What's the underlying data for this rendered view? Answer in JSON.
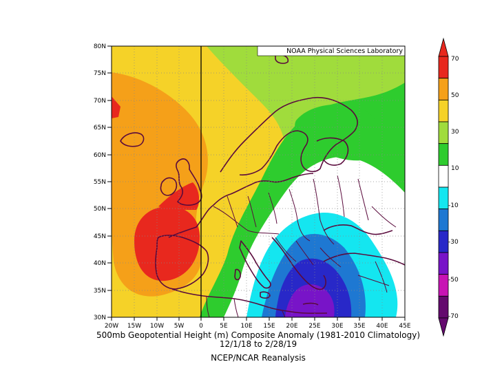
{
  "map": {
    "source_label": "NOAA Physical Sciences Laboratory",
    "lat_labels": [
      "30N",
      "35N",
      "40N",
      "45N",
      "50N",
      "55N",
      "60N",
      "65N",
      "70N",
      "75N",
      "80N"
    ],
    "lon_labels": [
      "20W",
      "15W",
      "10W",
      "5W",
      "0",
      "5E",
      "10E",
      "15E",
      "20E",
      "25E",
      "30E",
      "35E",
      "40E",
      "45E"
    ],
    "caption_line1": "500mb Geopotential Height (m) Composite Anomaly (1981-2010 Climatology)",
    "caption_line2": "12/1/18  to 2/28/19",
    "caption_line3": "NCEP/NCAR Reanalysis"
  },
  "colorbar": {
    "labels": [
      "70",
      "50",
      "30",
      "10",
      "-10",
      "-30",
      "-50",
      "-70"
    ],
    "colors": [
      "#e8281e",
      "#f5a019",
      "#f5d228",
      "#a0dc3c",
      "#2ecc2e",
      "#ffffff",
      "#14e6f0",
      "#1e78d2",
      "#2828c8",
      "#7814c8",
      "#c814b4",
      "#640a6e"
    ]
  }
}
